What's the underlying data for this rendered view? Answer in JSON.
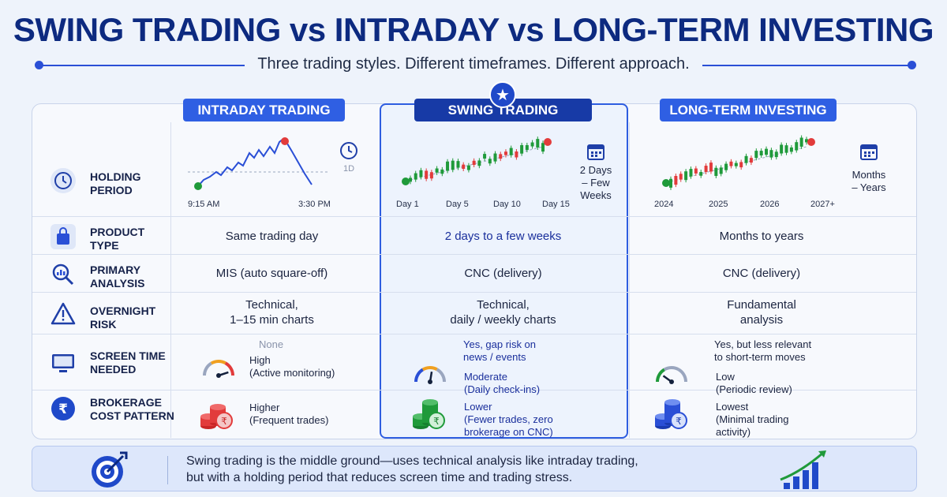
{
  "header": {
    "title": "SWING TRADING vs INTRADAY vs LONG-TERM INVESTING",
    "subtitle": "Three trading styles. Different timeframes. Different approach."
  },
  "columns": {
    "intraday": {
      "title": "INTRADAY TRADING",
      "color": "#2f5fe3",
      "chart": {
        "x_ticks": [
          "9:15 AM",
          "3:30 PM"
        ],
        "badge": "1D"
      },
      "cells": {
        "product_type": "Same trading day",
        "primary_analysis": "MIS (auto square-off)",
        "overnight_risk": [
          "Technical,",
          "1–15 min charts"
        ],
        "screen_time_a": "None",
        "screen_time_b": [
          "High",
          "(Active monitoring)"
        ],
        "brokerage": [
          "Higher",
          "(Frequent trades)"
        ]
      }
    },
    "swing": {
      "title": "SWING TRADING",
      "color": "#173aa6",
      "chart": {
        "x_ticks": [
          "Day 1",
          "Day 5",
          "Day 10",
          "Day 15"
        ],
        "side_text": [
          "2 Days",
          "– Few",
          "Weeks"
        ]
      },
      "cells": {
        "product_type": "2 days to a few weeks",
        "primary_analysis": "CNC (delivery)",
        "overnight_risk": [
          "Technical,",
          "daily / weekly charts"
        ],
        "screen_time_a": [
          "Yes, gap risk on",
          "news / events"
        ],
        "screen_time_b": [
          "Moderate",
          "(Daily check-ins)"
        ],
        "brokerage": [
          "Lower",
          "(Fewer trades, zero",
          "brokerage on CNC)"
        ]
      }
    },
    "longterm": {
      "title": "LONG-TERM INVESTING",
      "color": "#2f5fe3",
      "chart": {
        "x_ticks": [
          "2024",
          "2025",
          "2026",
          "2027+"
        ],
        "side_text": [
          "Months",
          "– Years"
        ]
      },
      "cells": {
        "product_type": "Months to years",
        "primary_analysis": "CNC (delivery)",
        "overnight_risk": [
          "Fundamental",
          "analysis"
        ],
        "screen_time_a": [
          "Yes, but less relevant",
          "to short-term moves"
        ],
        "screen_time_b": [
          "Low",
          "(Periodic review)"
        ],
        "brokerage": [
          "Lowest",
          "(Minimal trading",
          "activity)"
        ]
      }
    }
  },
  "rows": [
    {
      "label": [
        "HOLDING",
        "PERIOD"
      ],
      "icon": "clock-icon"
    },
    {
      "label": [
        "PRODUCT",
        "TYPE"
      ],
      "icon": "shopping-bag-icon"
    },
    {
      "label": [
        "PRIMARY",
        "ANALYSIS"
      ],
      "icon": "magnifier-chart-icon"
    },
    {
      "label": [
        "OVERNIGHT",
        "RISK"
      ],
      "icon": "warning-icon"
    },
    {
      "label": [
        "SCREEN TIME",
        "NEEDED"
      ],
      "icon": "monitor-icon"
    },
    {
      "label": [
        "BROKERAGE",
        "COST PATTERN"
      ],
      "icon": "rupee-icon"
    }
  ],
  "gauges": {
    "intraday": 0.9,
    "swing": 0.55,
    "longterm": 0.2
  },
  "banner": {
    "lines": [
      "Swing trading is the middle ground—uses technical analysis like intraday trading,",
      "but with a holding period that reduces screen time and trading stress."
    ]
  },
  "colors": {
    "accent": "#2a4fd6",
    "red": "#e23b3b",
    "green": "#1f9a3a",
    "navy": "#0d2a80"
  }
}
